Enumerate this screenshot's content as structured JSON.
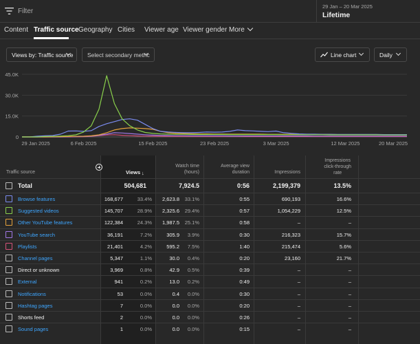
{
  "filter": {
    "placeholder": "Filter"
  },
  "date": {
    "range": "29 Jan – 20 Mar 2025",
    "period": "Lifetime"
  },
  "tabs": [
    {
      "label": "Content"
    },
    {
      "label": "Traffic source",
      "active": true
    },
    {
      "label": "Geography"
    },
    {
      "label": "Cities"
    },
    {
      "label": "Viewer age"
    },
    {
      "label": "Viewer gender"
    },
    {
      "label": "More"
    }
  ],
  "controls": {
    "views_by": "Views by: Traffic source",
    "secondary_metric": "Select secondary metric",
    "chart_type": "Line chart",
    "interval": "Daily"
  },
  "chart_data": {
    "type": "line",
    "y_ticks": [
      "45.0K",
      "30.0K",
      "15.0K",
      "0"
    ],
    "ylim": [
      0,
      45000
    ],
    "x_ticks": [
      "29 Jan 2025",
      "6 Feb 2025",
      "15 Feb 2025",
      "23 Feb 2025",
      "3 Mar 2025",
      "12 Mar 2025",
      "20 Mar 2025"
    ],
    "x_tick_days": [
      0,
      8,
      17,
      25,
      33,
      42,
      50
    ],
    "days": 51,
    "grid": true,
    "series": [
      {
        "color": "#8ad14c",
        "peak_day": 11,
        "values": [
          0,
          0,
          0,
          300,
          400,
          600,
          900,
          1500,
          3500,
          8000,
          20000,
          44000,
          24000,
          13000,
          8000,
          5000,
          3200,
          2500,
          2200,
          2000,
          1900,
          1900,
          1800,
          1800,
          1800,
          1800,
          1800,
          1700,
          1700,
          1700,
          1700,
          1700,
          1700,
          1700,
          1600,
          1600,
          1600,
          1600,
          1600,
          1600,
          1500,
          1500,
          1500,
          1500,
          1500,
          1500,
          1500,
          1400,
          1400,
          1400,
          1400
        ]
      },
      {
        "color": "#7b8cf0",
        "values": [
          0,
          0,
          500,
          800,
          1000,
          2000,
          4200,
          4300,
          4000,
          4500,
          7500,
          9500,
          11000,
          12500,
          13000,
          12000,
          9000,
          6000,
          4000,
          3500,
          3200,
          3000,
          3000,
          3200,
          3500,
          3400,
          3500,
          4000,
          5000,
          4500,
          4300,
          4000,
          3800,
          4200,
          3000,
          2500,
          2200,
          2000,
          2000,
          1900,
          1900,
          1800,
          1800,
          1800,
          1800,
          1800,
          1800,
          1700,
          1700,
          1700,
          1700
        ]
      },
      {
        "color": "#e6a23c",
        "values": [
          0,
          0,
          0,
          0,
          100,
          200,
          300,
          400,
          500,
          800,
          1500,
          3000,
          5000,
          6000,
          6500,
          6300,
          6000,
          5500,
          4000,
          3000,
          2500,
          2400,
          2300,
          2200,
          2200,
          2100,
          2100,
          2000,
          2000,
          2000,
          2000,
          2000,
          1900,
          1900,
          1900,
          1900,
          1800,
          1800,
          1800,
          1800,
          1800,
          1700,
          1700,
          1700,
          1700,
          1700,
          1700,
          1700,
          1700,
          1700,
          1700
        ]
      },
      {
        "color": "#a178e6",
        "values": [
          0,
          0,
          0,
          0,
          0,
          0,
          100,
          200,
          300,
          600,
          1200,
          2000,
          3000,
          2800,
          2400,
          2000,
          1600,
          1300,
          1100,
          1000,
          900,
          900,
          800,
          800,
          800,
          800,
          800,
          700,
          700,
          700,
          700,
          700,
          700,
          700,
          700,
          700,
          700,
          700,
          600,
          600,
          600,
          600,
          600,
          600,
          600,
          600,
          600,
          600,
          600,
          600,
          600
        ]
      },
      {
        "color": "#d6527a",
        "values": [
          0,
          0,
          0,
          0,
          0,
          0,
          0,
          100,
          200,
          400,
          900,
          1400,
          1600,
          1200,
          900,
          700,
          600,
          500,
          500,
          400,
          400,
          400,
          400,
          400,
          400,
          400,
          400,
          400,
          400,
          300,
          300,
          300,
          300,
          300,
          300,
          300,
          300,
          300,
          300,
          300,
          300,
          300,
          300,
          300,
          300,
          300,
          300,
          300,
          300,
          300,
          300
        ]
      }
    ]
  },
  "table": {
    "headers": {
      "source": "Traffic source",
      "views": "Views",
      "watch_time": [
        "Watch time",
        "(hours)"
      ],
      "avg_duration": [
        "Average view",
        "duration"
      ],
      "impressions": "Impressions",
      "ctr": [
        "Impressions",
        "click-through",
        "rate"
      ]
    },
    "total": {
      "label": "Total",
      "views": "504,681",
      "watch": "7,924.5",
      "avg": "0:56",
      "impr": "2,199,379",
      "ctr": "13.5%"
    },
    "rows": [
      {
        "label": "Browse features",
        "link": true,
        "color": "#7b8cf0",
        "views": "168,677",
        "views_pct": "33.4%",
        "watch": "2,623.8",
        "watch_pct": "33.1%",
        "avg": "0:55",
        "impr": "690,193",
        "ctr": "16.6%"
      },
      {
        "label": "Suggested videos",
        "link": true,
        "color": "#8ad14c",
        "views": "145,707",
        "views_pct": "28.9%",
        "watch": "2,325.6",
        "watch_pct": "29.4%",
        "avg": "0:57",
        "impr": "1,054,229",
        "ctr": "12.5%"
      },
      {
        "label": "Other YouTube features",
        "link": true,
        "color": "#e6a23c",
        "views": "122,384",
        "views_pct": "24.3%",
        "watch": "1,987.5",
        "watch_pct": "25.1%",
        "avg": "0:58",
        "impr": "–",
        "ctr": "–"
      },
      {
        "label": "YouTube search",
        "link": true,
        "color": "#a178e6",
        "views": "36,191",
        "views_pct": "7.2%",
        "watch": "305.9",
        "watch_pct": "3.9%",
        "avg": "0:30",
        "impr": "216,323",
        "ctr": "15.7%"
      },
      {
        "label": "Playlists",
        "link": true,
        "color": "#d6527a",
        "views": "21,401",
        "views_pct": "4.2%",
        "watch": "595.2",
        "watch_pct": "7.5%",
        "avg": "1:40",
        "impr": "215,474",
        "ctr": "5.6%"
      },
      {
        "label": "Channel pages",
        "link": true,
        "color": "#bbbbbb",
        "views": "5,347",
        "views_pct": "1.1%",
        "watch": "30.0",
        "watch_pct": "0.4%",
        "avg": "0:20",
        "impr": "23,160",
        "ctr": "21.7%"
      },
      {
        "label": "Direct or unknown",
        "link": false,
        "color": "#bbbbbb",
        "views": "3,969",
        "views_pct": "0.8%",
        "watch": "42.9",
        "watch_pct": "0.5%",
        "avg": "0:39",
        "impr": "–",
        "ctr": "–"
      },
      {
        "label": "External",
        "link": true,
        "color": "#bbbbbb",
        "views": "941",
        "views_pct": "0.2%",
        "watch": "13.0",
        "watch_pct": "0.2%",
        "avg": "0:49",
        "impr": "–",
        "ctr": "–"
      },
      {
        "label": "Notifications",
        "link": true,
        "color": "#bbbbbb",
        "views": "53",
        "views_pct": "0.0%",
        "watch": "0.4",
        "watch_pct": "0.0%",
        "avg": "0:30",
        "impr": "–",
        "ctr": "–"
      },
      {
        "label": "Hashtag pages",
        "link": true,
        "color": "#bbbbbb",
        "views": "7",
        "views_pct": "0.0%",
        "watch": "0.0",
        "watch_pct": "0.0%",
        "avg": "0:20",
        "impr": "–",
        "ctr": "–"
      },
      {
        "label": "Shorts feed",
        "link": false,
        "color": "#bbbbbb",
        "views": "2",
        "views_pct": "0.0%",
        "watch": "0.0",
        "watch_pct": "0.0%",
        "avg": "0:26",
        "impr": "–",
        "ctr": "–"
      },
      {
        "label": "Sound pages",
        "link": true,
        "color": "#bbbbbb",
        "views": "1",
        "views_pct": "0.0%",
        "watch": "0.0",
        "watch_pct": "0.0%",
        "avg": "0:15",
        "impr": "–",
        "ctr": "–"
      }
    ]
  }
}
